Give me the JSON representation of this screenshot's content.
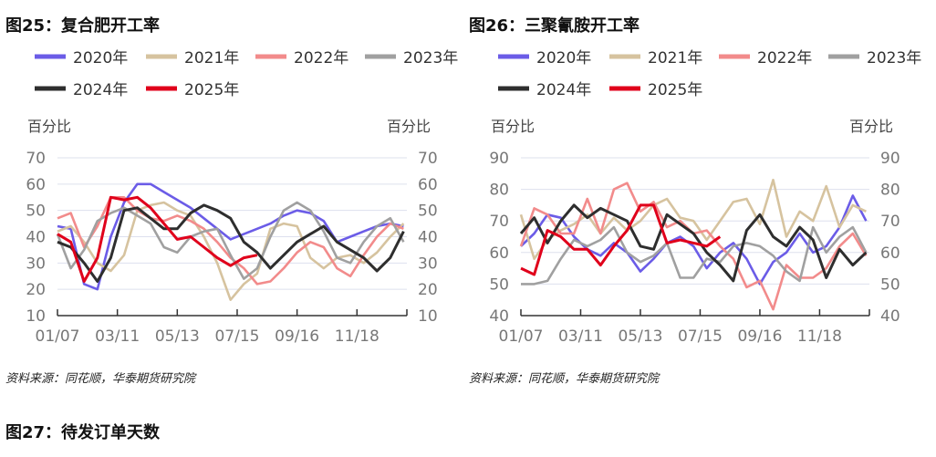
{
  "fig25_title": "图25：复合肥开工率",
  "fig26_title": "图26：三聚氰胺开工率",
  "fig27_title": "图27：待发订单天数",
  "source_left": "资料来源：同花顺，华泰期货研究院",
  "source_right": "资料来源：同花顺，华泰期货研究院",
  "colors": {
    "2020年": "#6b5ce7",
    "2021年": "#d6c39f",
    "2022年": "#f28b8b",
    "2023年": "#a0a0a0",
    "2024年": "#2e2e2e",
    "2025年": "#e0001b"
  },
  "chart_data": [
    {
      "type": "line",
      "title": "图25：复合肥开工率",
      "ylabel_left": "百分比",
      "ylabel_right": "百分比",
      "ylim": [
        10,
        70
      ],
      "yticks": [
        10,
        20,
        30,
        40,
        50,
        60,
        70
      ],
      "xticks": [
        "01/07",
        "03/11",
        "05/13",
        "07/15",
        "09/16",
        "11/18"
      ],
      "x_unit": "week index from 01/07, step 2",
      "legend": "top",
      "series": [
        {
          "name": "2020年",
          "values": [
            44,
            43,
            22,
            20,
            40,
            53,
            60,
            60,
            57,
            54,
            51,
            47,
            43,
            39,
            41,
            43,
            45,
            48,
            50,
            49,
            46,
            38,
            40,
            42,
            44,
            45,
            44
          ]
        },
        {
          "name": "2021年",
          "values": [
            42,
            44,
            38,
            30,
            27,
            33,
            50,
            52,
            53,
            50,
            48,
            40,
            30,
            16,
            22,
            26,
            43,
            45,
            44,
            32,
            28,
            32,
            33,
            30,
            34,
            40,
            45
          ]
        },
        {
          "name": "2022年",
          "values": [
            47,
            49,
            36,
            44,
            55,
            55,
            50,
            47,
            46,
            48,
            46,
            43,
            38,
            32,
            28,
            22,
            23,
            28,
            34,
            38,
            36,
            28,
            25,
            33,
            40,
            45,
            43
          ]
        },
        {
          "name": "2023年",
          "values": [
            41,
            28,
            35,
            46,
            49,
            51,
            48,
            45,
            36,
            34,
            40,
            42,
            43,
            33,
            24,
            28,
            40,
            50,
            53,
            50,
            42,
            32,
            30,
            38,
            44,
            47,
            38
          ]
        },
        {
          "name": "2024年",
          "values": [
            38,
            36,
            30,
            23,
            32,
            50,
            51,
            47,
            43,
            43,
            49,
            52,
            50,
            47,
            38,
            34,
            28,
            33,
            38,
            41,
            44,
            38,
            35,
            32,
            27,
            32,
            42
          ]
        },
        {
          "name": "2025年",
          "values": [
            41,
            38,
            23,
            32,
            55,
            54,
            55,
            51,
            45,
            39,
            40,
            36,
            32,
            29,
            32,
            33
          ]
        }
      ]
    },
    {
      "type": "line",
      "title": "图26：三聚氰胺开工率",
      "ylabel_left": "百分比",
      "ylabel_right": "百分比",
      "ylim": [
        40,
        90
      ],
      "yticks": [
        40,
        50,
        60,
        70,
        80,
        90
      ],
      "xticks": [
        "01/07",
        "03/11",
        "05/13",
        "07/15",
        "09/16",
        "11/18"
      ],
      "x_unit": "week index from 01/07, step 2",
      "legend": "top",
      "series": [
        {
          "name": "2020年",
          "values": [
            62,
            66,
            72,
            71,
            65,
            61,
            59,
            63,
            60,
            54,
            58,
            63,
            65,
            62,
            55,
            60,
            63,
            58,
            50,
            57,
            60,
            66,
            60,
            62,
            68,
            78,
            70
          ]
        },
        {
          "name": "2021年",
          "values": [
            72,
            58,
            64,
            67,
            69,
            72,
            66,
            71,
            67,
            70,
            75,
            77,
            71,
            70,
            64,
            70,
            76,
            77,
            69,
            83,
            65,
            73,
            70,
            81,
            68,
            75,
            73
          ]
        },
        {
          "name": "2022年",
          "values": [
            62,
            74,
            72,
            66,
            66,
            77,
            66,
            80,
            82,
            73,
            76,
            68,
            70,
            66,
            67,
            62,
            58,
            49,
            51,
            42,
            56,
            52,
            52,
            55,
            62,
            66,
            59
          ]
        },
        {
          "name": "2023年",
          "values": [
            50,
            50,
            51,
            58,
            64,
            62,
            64,
            68,
            60,
            57,
            59,
            63,
            52,
            52,
            58,
            57,
            62,
            63,
            62,
            59,
            54,
            51,
            68,
            60,
            65,
            68,
            60
          ]
        },
        {
          "name": "2024年",
          "values": [
            66,
            71,
            63,
            70,
            75,
            71,
            74,
            72,
            70,
            62,
            61,
            72,
            69,
            66,
            60,
            56,
            51,
            67,
            72,
            65,
            62,
            68,
            64,
            52,
            61,
            56,
            60
          ]
        },
        {
          "name": "2025年",
          "values": [
            55,
            53,
            67,
            65,
            61,
            61,
            56,
            62,
            67,
            75,
            75,
            63,
            64,
            63,
            62,
            65
          ]
        }
      ]
    }
  ]
}
